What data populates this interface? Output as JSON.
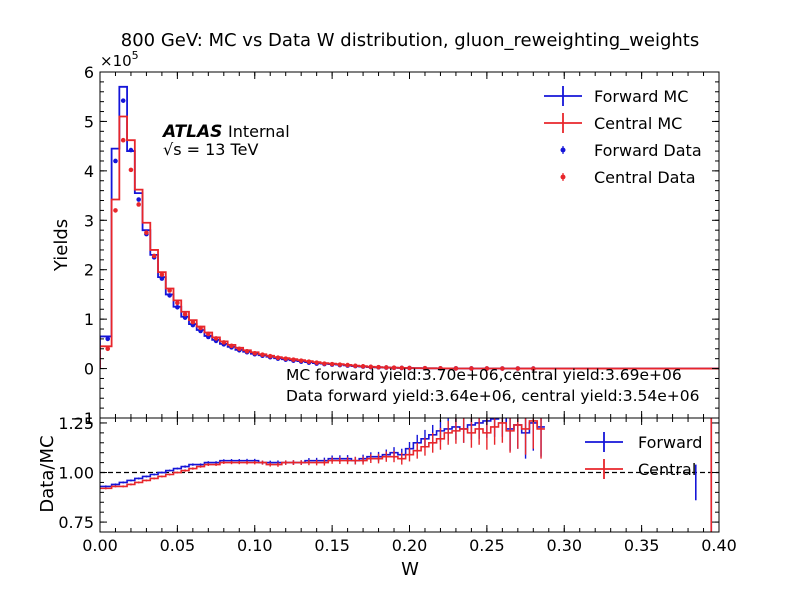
{
  "chart_data": [
    {
      "type": "line",
      "title": "800 GeV: MC vs Data W distribution, gluon_reweighting_weights",
      "ylabel": "Yields",
      "yscale_label": "×10",
      "yscale_exp": "5",
      "xlim": [
        0.0,
        0.4
      ],
      "ylim": [
        -1.0,
        6.0
      ],
      "ytick_labels": [
        "−1",
        "0",
        "1",
        "2",
        "3",
        "4",
        "5",
        "6"
      ],
      "ytick_values": [
        -1,
        0,
        1,
        2,
        3,
        4,
        5,
        6
      ],
      "atlas_label": "ATLAS",
      "atlas_status": "Internal",
      "energy_label": "√s = 13 TeV",
      "annotation_mc": "MC forward yield:3.70e+06,central yield:3.69e+06",
      "annotation_data": "Data forward yield:3.64e+06, central yield:3.54e+06",
      "legend_position": "top-right",
      "bin_edges": [
        0.0,
        0.0075,
        0.0125,
        0.0175,
        0.0225,
        0.0275,
        0.0325,
        0.0375,
        0.0425,
        0.0475,
        0.0525,
        0.0575,
        0.0625,
        0.0675,
        0.0725,
        0.0775,
        0.0825,
        0.0875,
        0.0925,
        0.0975,
        0.1025,
        0.1075,
        0.1125,
        0.1175,
        0.1225,
        0.1275,
        0.1325,
        0.1375,
        0.1425,
        0.1475,
        0.1525,
        0.1575,
        0.1625,
        0.1675,
        0.1725,
        0.1775,
        0.1825,
        0.1875,
        0.1925,
        0.1975,
        0.2025,
        0.2075,
        0.2125,
        0.2175,
        0.2225,
        0.2275,
        0.2325,
        0.2375,
        0.2425,
        0.2475,
        0.2525,
        0.2575,
        0.2625,
        0.2675,
        0.2725,
        0.2775,
        0.2825,
        0.2875,
        0.2925,
        0.2975,
        0.3025,
        0.3075,
        0.3125,
        0.3175,
        0.3225,
        0.3275,
        0.3325,
        0.3375,
        0.3425,
        0.3475,
        0.3525,
        0.3575,
        0.3625,
        0.3675,
        0.3725,
        0.3775,
        0.3825,
        0.3875,
        0.3925,
        0.4
      ],
      "series": [
        {
          "name": "Forward MC",
          "kind": "step",
          "color": "#1515d8",
          "values": [
            0.65,
            4.45,
            5.7,
            4.4,
            3.55,
            2.8,
            2.3,
            1.85,
            1.5,
            1.25,
            1.05,
            0.9,
            0.78,
            0.66,
            0.58,
            0.5,
            0.44,
            0.38,
            0.34,
            0.3,
            0.27,
            0.24,
            0.21,
            0.19,
            0.17,
            0.15,
            0.13,
            0.11,
            0.1,
            0.09,
            0.08,
            0.065,
            0.05,
            0.04,
            0.03,
            0.025,
            0.02,
            0.016,
            0.013,
            0.01,
            0.008,
            0.006,
            0.005,
            0.004,
            0.003,
            0.002,
            0.002,
            0.002,
            0.001,
            0.001,
            0.001,
            0.001,
            0.001,
            0.0,
            0.0,
            0.0,
            0.0,
            0.0,
            0.0,
            0.0,
            0.0,
            0.0,
            0.0,
            0.0,
            0.0,
            0.0,
            0.0,
            0.0,
            0.0,
            0.0,
            0.0,
            0.0,
            0.0,
            0.0,
            0.0,
            0.0,
            0.0,
            0.0,
            0.0
          ]
        },
        {
          "name": "Central MC",
          "kind": "step",
          "color": "#e8262b",
          "values": [
            0.45,
            3.42,
            5.1,
            4.62,
            3.62,
            2.95,
            2.4,
            1.95,
            1.62,
            1.38,
            1.15,
            0.98,
            0.85,
            0.73,
            0.63,
            0.55,
            0.48,
            0.42,
            0.37,
            0.33,
            0.29,
            0.26,
            0.23,
            0.21,
            0.19,
            0.17,
            0.15,
            0.13,
            0.11,
            0.1,
            0.09,
            0.075,
            0.06,
            0.048,
            0.036,
            0.028,
            0.022,
            0.018,
            0.014,
            0.011,
            0.009,
            0.007,
            0.005,
            0.004,
            0.003,
            0.002,
            0.002,
            0.002,
            0.001,
            0.001,
            0.001,
            0.001,
            0.001,
            0.0,
            0.0,
            0.0,
            0.0,
            0.0,
            0.0,
            0.0,
            0.0,
            0.0,
            0.0,
            0.0,
            0.0,
            0.0,
            0.0,
            0.0,
            0.0,
            0.0,
            0.0,
            0.0,
            0.0,
            0.0,
            0.0,
            0.0,
            0.0,
            0.0,
            0.0
          ]
        },
        {
          "name": "Forward Data",
          "kind": "points",
          "color": "#1515d8",
          "x": [
            0.005,
            0.01,
            0.015,
            0.02,
            0.025,
            0.03,
            0.035,
            0.04,
            0.045,
            0.05,
            0.055,
            0.06,
            0.065,
            0.07,
            0.075,
            0.08,
            0.085,
            0.09,
            0.095,
            0.1,
            0.105,
            0.11,
            0.115,
            0.12,
            0.125,
            0.13,
            0.135,
            0.14,
            0.145,
            0.15,
            0.155,
            0.16,
            0.165,
            0.17,
            0.175,
            0.18,
            0.185,
            0.19,
            0.195,
            0.2,
            0.21,
            0.22,
            0.23,
            0.24,
            0.25,
            0.26,
            0.27,
            0.28
          ],
          "values": [
            0.6,
            4.2,
            5.42,
            4.42,
            3.42,
            2.72,
            2.25,
            1.82,
            1.48,
            1.24,
            1.03,
            0.88,
            0.76,
            0.64,
            0.56,
            0.49,
            0.43,
            0.37,
            0.33,
            0.29,
            0.26,
            0.23,
            0.2,
            0.18,
            0.16,
            0.14,
            0.12,
            0.1,
            0.09,
            0.08,
            0.07,
            0.06,
            0.05,
            0.04,
            0.03,
            0.025,
            0.02,
            0.015,
            0.012,
            0.01,
            0.006,
            0.004,
            0.003,
            0.002,
            0.001,
            0.001,
            0.001,
            0.0
          ]
        },
        {
          "name": "Central Data",
          "kind": "points",
          "color": "#e8262b",
          "x": [
            0.005,
            0.01,
            0.015,
            0.02,
            0.025,
            0.03,
            0.035,
            0.04,
            0.045,
            0.05,
            0.055,
            0.06,
            0.065,
            0.07,
            0.075,
            0.08,
            0.085,
            0.09,
            0.095,
            0.1,
            0.105,
            0.11,
            0.115,
            0.12,
            0.125,
            0.13,
            0.135,
            0.14,
            0.145,
            0.15,
            0.155,
            0.16,
            0.165,
            0.17,
            0.175,
            0.18,
            0.185,
            0.19,
            0.195,
            0.2,
            0.21,
            0.22,
            0.23,
            0.24,
            0.25,
            0.26,
            0.27,
            0.28
          ],
          "values": [
            0.4,
            3.2,
            4.62,
            4.02,
            3.32,
            2.75,
            2.28,
            1.9,
            1.58,
            1.33,
            1.1,
            0.94,
            0.82,
            0.7,
            0.61,
            0.53,
            0.46,
            0.4,
            0.35,
            0.31,
            0.28,
            0.25,
            0.22,
            0.2,
            0.18,
            0.16,
            0.14,
            0.12,
            0.1,
            0.09,
            0.08,
            0.07,
            0.055,
            0.045,
            0.035,
            0.028,
            0.022,
            0.017,
            0.013,
            0.011,
            0.007,
            0.005,
            0.003,
            0.002,
            0.002,
            0.001,
            0.001,
            0.0
          ]
        }
      ]
    },
    {
      "type": "line",
      "xlabel": "W",
      "ylabel": "Data/MC",
      "xlim": [
        0.0,
        0.4
      ],
      "ylim": [
        0.7,
        1.275
      ],
      "xtick_values": [
        0.0,
        0.05,
        0.1,
        0.15,
        0.2,
        0.25,
        0.3,
        0.35,
        0.4
      ],
      "xtick_labels": [
        "0.00",
        "0.05",
        "0.10",
        "0.15",
        "0.20",
        "0.25",
        "0.30",
        "0.35",
        "0.40"
      ],
      "ytick_values": [
        0.75,
        1.0,
        1.25
      ],
      "ytick_labels": [
        "0.75",
        "1.00",
        "1.25"
      ],
      "reference_line": 1.0,
      "legend_position": "top-right",
      "series": [
        {
          "name": "Forward",
          "kind": "step",
          "color": "#1515d8",
          "values": [
            0.93,
            0.94,
            0.95,
            0.96,
            0.97,
            0.98,
            0.99,
            1.0,
            1.01,
            1.02,
            1.03,
            1.04,
            1.04,
            1.05,
            1.05,
            1.06,
            1.06,
            1.06,
            1.06,
            1.06,
            1.05,
            1.05,
            1.05,
            1.05,
            1.05,
            1.05,
            1.06,
            1.06,
            1.06,
            1.07,
            1.07,
            1.07,
            1.06,
            1.07,
            1.08,
            1.08,
            1.09,
            1.1,
            1.09,
            1.12,
            1.15,
            1.17,
            1.19,
            1.21,
            1.22,
            1.23,
            1.22,
            1.24,
            1.25,
            1.26,
            1.27,
            1.28,
            1.22,
            1.24,
            1.2,
            1.25,
            1.23
          ],
          "errors": [
            0.005,
            0.005,
            0.005,
            0.005,
            0.005,
            0.005,
            0.005,
            0.005,
            0.005,
            0.005,
            0.006,
            0.006,
            0.006,
            0.007,
            0.007,
            0.007,
            0.008,
            0.008,
            0.009,
            0.009,
            0.01,
            0.01,
            0.011,
            0.011,
            0.012,
            0.012,
            0.013,
            0.014,
            0.015,
            0.016,
            0.017,
            0.018,
            0.019,
            0.02,
            0.022,
            0.024,
            0.026,
            0.028,
            0.03,
            0.034,
            0.04,
            0.045,
            0.05,
            0.055,
            0.06,
            0.065,
            0.07,
            0.075,
            0.08,
            0.085,
            0.09,
            0.1,
            0.11,
            0.12,
            0.13,
            0.14,
            0.15
          ],
          "outliers": [
            {
              "x": 0.385,
              "value": 0.95,
              "error": 0.09
            },
            {
              "x": 0.395,
              "value": 1.1,
              "error": 0.4
            }
          ]
        },
        {
          "name": "Central",
          "kind": "step",
          "color": "#e8262b",
          "values": [
            0.92,
            0.93,
            0.93,
            0.94,
            0.95,
            0.96,
            0.97,
            0.98,
            0.99,
            1.0,
            1.01,
            1.02,
            1.03,
            1.04,
            1.04,
            1.05,
            1.05,
            1.05,
            1.05,
            1.05,
            1.05,
            1.04,
            1.04,
            1.05,
            1.05,
            1.05,
            1.05,
            1.05,
            1.05,
            1.06,
            1.06,
            1.06,
            1.06,
            1.06,
            1.07,
            1.07,
            1.08,
            1.08,
            1.07,
            1.09,
            1.11,
            1.13,
            1.15,
            1.17,
            1.2,
            1.21,
            1.22,
            1.2,
            1.22,
            1.2,
            1.23,
            1.25,
            1.21,
            1.24,
            1.22,
            1.26,
            1.22
          ],
          "errors": [
            0.005,
            0.005,
            0.005,
            0.005,
            0.005,
            0.005,
            0.005,
            0.005,
            0.005,
            0.005,
            0.006,
            0.006,
            0.006,
            0.007,
            0.007,
            0.007,
            0.008,
            0.008,
            0.009,
            0.009,
            0.01,
            0.01,
            0.011,
            0.011,
            0.012,
            0.012,
            0.013,
            0.014,
            0.015,
            0.016,
            0.017,
            0.018,
            0.019,
            0.02,
            0.022,
            0.024,
            0.026,
            0.028,
            0.03,
            0.034,
            0.04,
            0.045,
            0.05,
            0.055,
            0.06,
            0.065,
            0.07,
            0.075,
            0.08,
            0.085,
            0.09,
            0.1,
            0.11,
            0.12,
            0.13,
            0.14,
            0.15
          ],
          "outliers": [
            {
              "x": 0.395,
              "value": 1.05,
              "error": 0.5
            }
          ]
        }
      ]
    }
  ]
}
